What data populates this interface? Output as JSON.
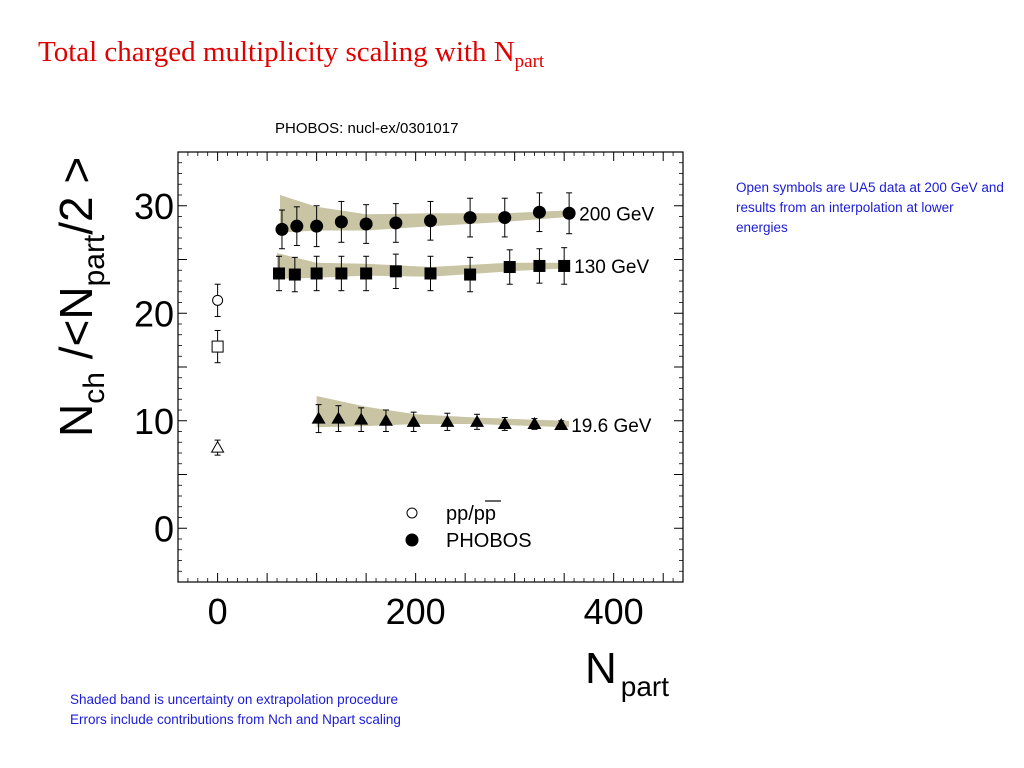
{
  "slide": {
    "title_main": "Total charged multiplicity scaling with N",
    "title_sub": "part",
    "source": "PHOBOS:  nucl-ex/0301017",
    "note_right": "Open symbols are UA5 data at 200 GeV and results from an interpolation at lower energies",
    "notes_bottom": [
      "Shaded band is uncertainty on extrapolation procedure",
      "Errors include contributions from Nch and Npart scaling"
    ]
  },
  "colors": {
    "title": "#e00000",
    "notes": "#1b1bd6",
    "band": "#c9c4a4",
    "markers": "#000000"
  },
  "chart_data": {
    "type": "scatter",
    "xlabel_main": "N",
    "xlabel_sub": "part",
    "ylabel_main": "N",
    "ylabel_sub1": "ch",
    "ylabel_mid": " /<N",
    "ylabel_sub2": "part",
    "ylabel_end": "/2 >",
    "xlim": [
      -40,
      470
    ],
    "ylim": [
      -5,
      35
    ],
    "xticks": [
      0,
      200,
      400
    ],
    "yticks": [
      0,
      10,
      20,
      30
    ],
    "legend": [
      {
        "label": "pp/pp",
        "marker": "open-circle"
      },
      {
        "label": "PHOBOS",
        "marker": "filled-circle"
      }
    ],
    "series": [
      {
        "name": "200 GeV",
        "marker": "filled-circle",
        "x": [
          65,
          80,
          100,
          125,
          150,
          180,
          215,
          255,
          290,
          325,
          355
        ],
        "y": [
          27.8,
          28.1,
          28.1,
          28.5,
          28.3,
          28.4,
          28.6,
          28.9,
          28.9,
          29.4,
          29.3
        ],
        "err": [
          1.8,
          1.8,
          1.9,
          1.9,
          1.8,
          1.8,
          1.8,
          1.8,
          1.8,
          1.8,
          1.9
        ],
        "band": {
          "x": [
            63,
            100,
            150,
            215,
            290,
            360
          ],
          "lo": [
            27.5,
            27.7,
            27.7,
            28.1,
            28.5,
            29.0
          ],
          "hi": [
            31.0,
            29.9,
            29.2,
            29.3,
            29.3,
            29.6
          ]
        }
      },
      {
        "name": "130 GeV",
        "marker": "filled-square",
        "x": [
          62,
          78,
          100,
          125,
          150,
          180,
          215,
          255,
          295,
          325,
          350
        ],
        "y": [
          23.7,
          23.6,
          23.7,
          23.7,
          23.7,
          23.9,
          23.7,
          23.6,
          24.3,
          24.4,
          24.4
        ],
        "err": [
          1.6,
          1.6,
          1.6,
          1.6,
          1.6,
          1.6,
          1.6,
          1.6,
          1.6,
          1.6,
          1.7
        ],
        "band": {
          "x": [
            60,
            100,
            150,
            215,
            295,
            355
          ],
          "lo": [
            23.2,
            23.3,
            23.5,
            23.4,
            23.9,
            24.2
          ],
          "hi": [
            25.6,
            24.7,
            24.6,
            24.3,
            24.7,
            24.7
          ]
        }
      },
      {
        "name": "19.6 GeV",
        "marker": "filled-triangle",
        "x": [
          102,
          122,
          145,
          170,
          198,
          232,
          262,
          290,
          320,
          347
        ],
        "y": [
          10.2,
          10.2,
          10.1,
          10.0,
          9.9,
          9.9,
          9.9,
          9.7,
          9.7,
          9.6
        ],
        "err": [
          1.3,
          1.2,
          1.1,
          1.0,
          0.9,
          0.8,
          0.7,
          0.6,
          0.5,
          0.4
        ],
        "band": {
          "x": [
            100,
            150,
            200,
            260,
            320,
            355
          ],
          "lo": [
            9.4,
            9.5,
            9.7,
            9.7,
            9.5,
            9.4
          ],
          "hi": [
            12.3,
            11.3,
            10.6,
            10.3,
            10.1,
            10.0
          ]
        }
      },
      {
        "marker": "open-circle",
        "x": [
          0
        ],
        "y": [
          21.2
        ],
        "err": [
          1.5
        ]
      },
      {
        "marker": "open-square",
        "x": [
          0
        ],
        "y": [
          16.9
        ],
        "err": [
          1.5
        ]
      },
      {
        "marker": "open-triangle",
        "x": [
          0
        ],
        "y": [
          7.5
        ],
        "err": [
          0.7
        ]
      }
    ]
  }
}
